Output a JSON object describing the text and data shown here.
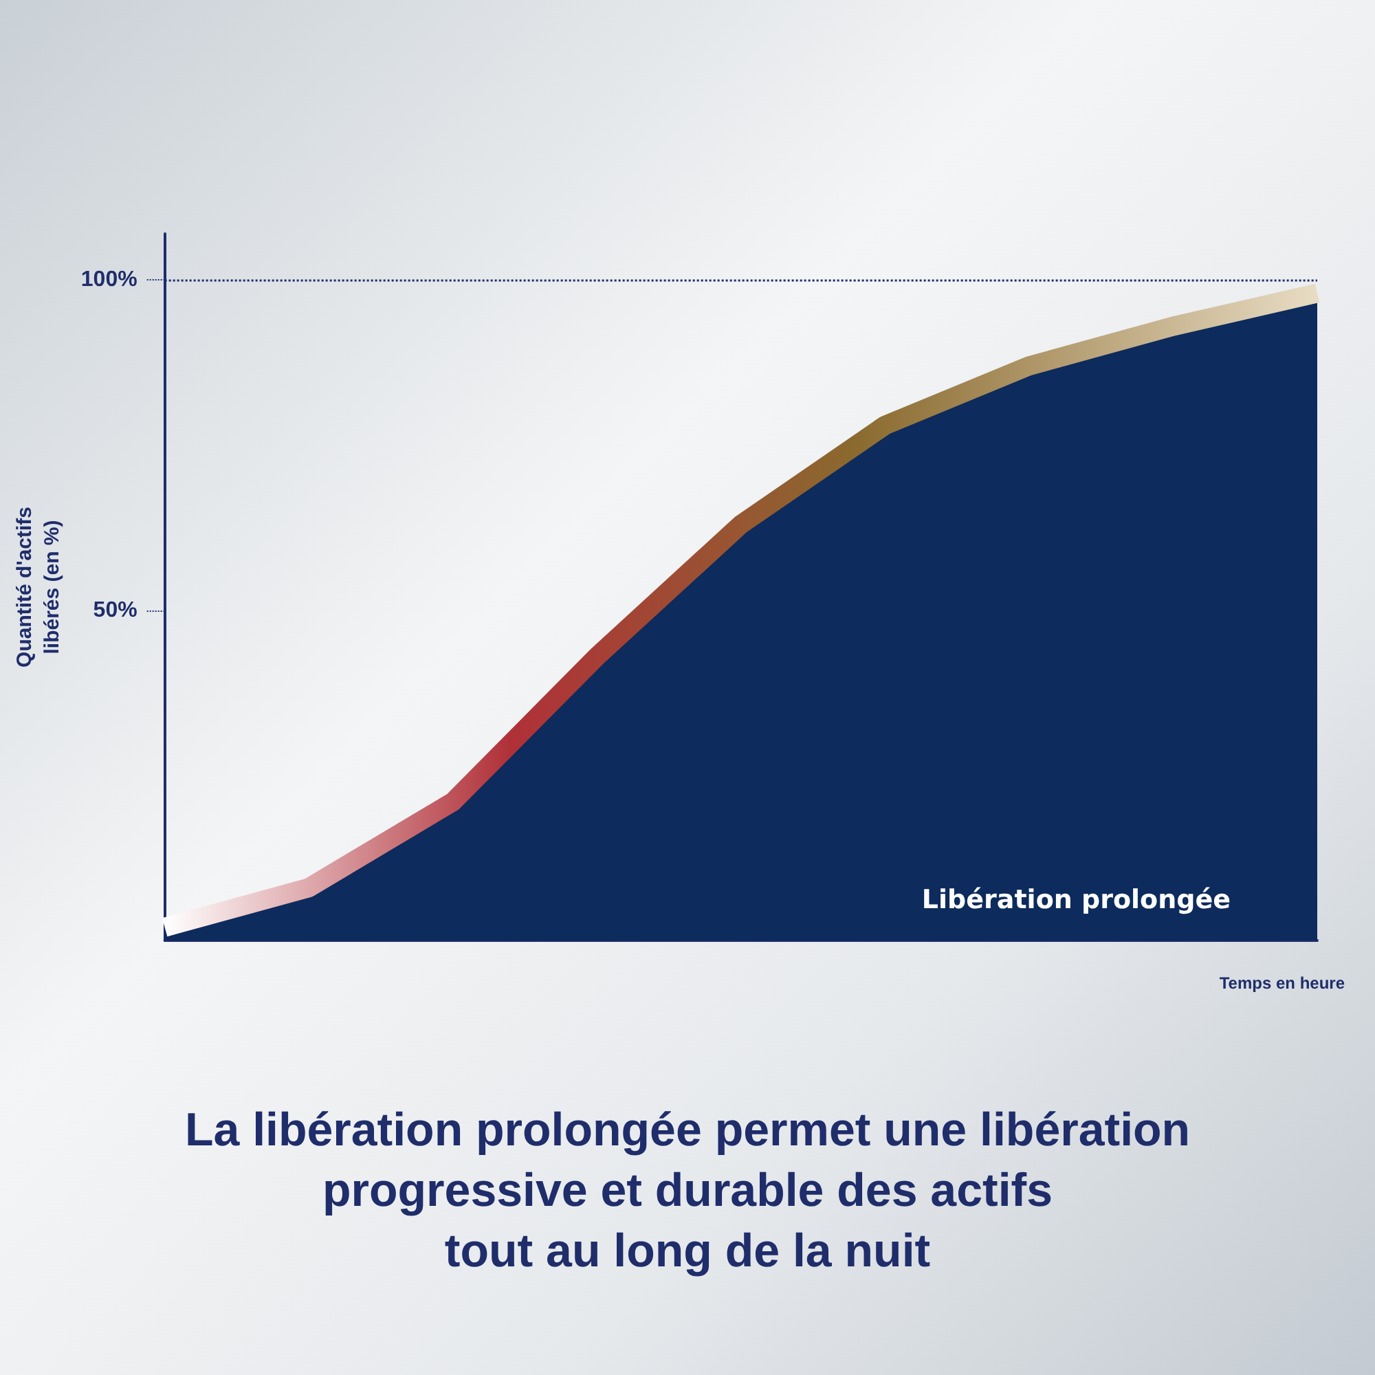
{
  "chart_data": {
    "type": "area",
    "title": "La libération prolongée permet une libération\nprogressive et durable des actifs\ntout au long de la nuit",
    "xlabel": "Temps en heure",
    "ylabel": "Quantité d'actifs\nlibérés (en %)",
    "categories": [
      null,
      null,
      null,
      null,
      null,
      null,
      null,
      null,
      null
    ],
    "series": [
      {
        "name": "Libération prolongée",
        "color": "#0d2b5c",
        "values": [
          2,
          8,
          21,
          43,
          63,
          78,
          87,
          93,
          98
        ]
      }
    ],
    "ylim": [
      0,
      107
    ],
    "yticks": [
      {
        "value": 50,
        "label": "50%"
      },
      {
        "value": 100,
        "label": "100%"
      }
    ],
    "ref_lines": [
      {
        "axis": "y",
        "value": 100,
        "label": null,
        "line_style": "dotted",
        "color": "#1f2d6b"
      }
    ],
    "grid": false,
    "legend": "bottom right",
    "marker": "none",
    "line_style": "solid"
  }
}
